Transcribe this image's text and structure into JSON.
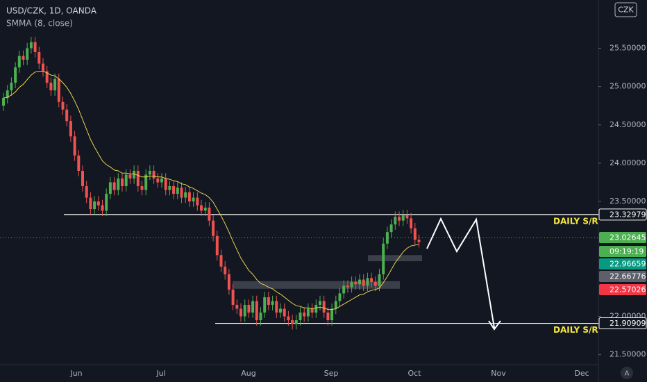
{
  "chart_data": {
    "type": "candlestick",
    "title": "USD/CZK, 1D, OANDA",
    "currency": "CZK",
    "scale_button": "A",
    "up_color": "#4caf50",
    "down_color": "#ef5350",
    "open": [
      24.75,
      24.85,
      24.95,
      25.05,
      25.25,
      25.4,
      25.35,
      25.5,
      25.58,
      25.45,
      25.3,
      25.2,
      25.05,
      24.95,
      25.1,
      24.8,
      24.7,
      24.55,
      24.35,
      24.1,
      23.9,
      23.7,
      23.55,
      23.4,
      23.5,
      23.45,
      23.38,
      23.6,
      23.75,
      23.65,
      23.8,
      23.7,
      23.85,
      23.8,
      23.9,
      23.7,
      23.65,
      23.85,
      23.9,
      23.8,
      23.75,
      23.8,
      23.65,
      23.7,
      23.6,
      23.68,
      23.55,
      23.62,
      23.5,
      23.55,
      23.45,
      23.38,
      23.42,
      23.25,
      23.05,
      22.8,
      22.65,
      22.55,
      22.35,
      22.15,
      22.1,
      22.0,
      22.15,
      22.05,
      22.2,
      21.95,
      22.05,
      22.25,
      22.15,
      22.2,
      22.05,
      22.1,
      22.0,
      21.95,
      21.9,
      21.95,
      22.05,
      22.0,
      22.1,
      22.05,
      22.15,
      22.2,
      22.05,
      21.95,
      22.1,
      22.2,
      22.3,
      22.4,
      22.38,
      22.45,
      22.42,
      22.48,
      22.4,
      22.5,
      22.45,
      22.4,
      22.55,
      22.95,
      23.1,
      23.2,
      23.3,
      23.25,
      23.32,
      23.28,
      23.15,
      23.0
    ],
    "high": [
      24.92,
      25.02,
      25.12,
      25.32,
      25.47,
      25.47,
      25.57,
      25.65,
      25.65,
      25.52,
      25.37,
      25.27,
      25.12,
      25.17,
      25.17,
      24.87,
      24.77,
      24.62,
      24.42,
      24.17,
      23.97,
      23.77,
      23.62,
      23.57,
      23.57,
      23.52,
      23.67,
      23.82,
      23.82,
      23.87,
      23.87,
      23.92,
      23.92,
      23.97,
      23.97,
      23.77,
      23.92,
      23.97,
      23.97,
      23.87,
      23.87,
      23.87,
      23.77,
      23.77,
      23.75,
      23.75,
      23.69,
      23.69,
      23.62,
      23.62,
      23.52,
      23.49,
      23.49,
      23.32,
      23.12,
      22.87,
      22.72,
      22.62,
      22.42,
      22.22,
      22.17,
      22.22,
      22.22,
      22.27,
      22.27,
      22.12,
      22.32,
      22.32,
      22.27,
      22.27,
      22.17,
      22.17,
      22.07,
      22.02,
      22.02,
      22.12,
      22.12,
      22.17,
      22.17,
      22.22,
      22.27,
      22.27,
      22.12,
      22.17,
      22.27,
      22.37,
      22.47,
      22.47,
      22.52,
      22.52,
      22.55,
      22.55,
      22.57,
      22.57,
      22.52,
      22.62,
      23.02,
      23.17,
      23.27,
      23.37,
      23.37,
      23.39,
      23.39,
      23.35,
      23.22,
      23.07
    ],
    "low": [
      24.68,
      24.78,
      24.88,
      24.98,
      25.18,
      25.28,
      25.28,
      25.43,
      25.38,
      25.23,
      25.13,
      24.98,
      24.88,
      24.88,
      24.73,
      24.63,
      24.48,
      24.28,
      24.03,
      23.83,
      23.63,
      23.48,
      23.33,
      23.33,
      23.38,
      23.31,
      23.31,
      23.53,
      23.58,
      23.58,
      23.63,
      23.63,
      23.73,
      23.73,
      23.63,
      23.58,
      23.58,
      23.78,
      23.73,
      23.68,
      23.68,
      23.58,
      23.58,
      23.53,
      23.53,
      23.48,
      23.48,
      23.43,
      23.43,
      23.38,
      23.31,
      23.31,
      23.18,
      22.98,
      22.73,
      22.58,
      22.48,
      22.28,
      22.08,
      22.03,
      21.93,
      21.93,
      21.98,
      21.98,
      21.88,
      21.88,
      21.98,
      22.08,
      22.08,
      21.98,
      21.98,
      21.93,
      21.88,
      21.83,
      21.83,
      21.88,
      21.93,
      21.93,
      21.98,
      21.98,
      22.08,
      21.98,
      21.88,
      21.88,
      22.03,
      22.13,
      22.23,
      22.31,
      22.31,
      22.35,
      22.35,
      22.33,
      22.33,
      22.38,
      22.33,
      22.33,
      22.48,
      22.88,
      23.03,
      23.13,
      23.18,
      23.18,
      23.21,
      23.08,
      22.93,
      22.9
    ],
    "close": [
      24.85,
      24.95,
      25.05,
      25.25,
      25.4,
      25.35,
      25.5,
      25.58,
      25.45,
      25.3,
      25.2,
      25.05,
      24.95,
      25.1,
      24.8,
      24.7,
      24.55,
      24.35,
      24.1,
      23.9,
      23.7,
      23.55,
      23.4,
      23.5,
      23.45,
      23.38,
      23.6,
      23.75,
      23.65,
      23.8,
      23.7,
      23.85,
      23.8,
      23.9,
      23.7,
      23.65,
      23.85,
      23.9,
      23.8,
      23.75,
      23.8,
      23.65,
      23.7,
      23.6,
      23.68,
      23.55,
      23.62,
      23.5,
      23.55,
      23.45,
      23.38,
      23.42,
      23.25,
      23.05,
      22.8,
      22.65,
      22.55,
      22.35,
      22.15,
      22.1,
      22.0,
      22.15,
      22.05,
      22.2,
      21.95,
      22.05,
      22.25,
      22.15,
      22.2,
      22.05,
      22.1,
      22.0,
      21.95,
      21.9,
      21.95,
      22.05,
      22.0,
      22.1,
      22.05,
      22.15,
      22.2,
      22.05,
      21.95,
      22.1,
      22.2,
      22.3,
      22.4,
      22.38,
      22.45,
      22.42,
      22.48,
      22.4,
      22.5,
      22.45,
      22.4,
      22.55,
      22.95,
      23.1,
      23.2,
      23.3,
      23.25,
      23.32,
      23.28,
      23.15,
      23.0,
      22.97
    ],
    "series": [
      {
        "name": "SMMA (8, close)",
        "color": "#e8d44d",
        "values": [
          24.85,
          24.86,
          24.89,
          24.93,
          24.99,
          25.03,
          25.09,
          25.15,
          25.19,
          25.2,
          25.2,
          25.18,
          25.15,
          25.14,
          25.1,
          25.05,
          24.99,
          24.91,
          24.81,
          24.7,
          24.57,
          24.44,
          24.31,
          24.21,
          24.12,
          24.03,
          23.98,
          23.95,
          23.91,
          23.9,
          23.87,
          23.87,
          23.86,
          23.86,
          23.84,
          23.82,
          23.82,
          23.83,
          23.83,
          23.82,
          23.82,
          23.8,
          23.79,
          23.77,
          23.76,
          23.73,
          23.72,
          23.69,
          23.67,
          23.64,
          23.61,
          23.59,
          23.55,
          23.49,
          23.4,
          23.31,
          23.21,
          23.1,
          22.98,
          22.87,
          22.76,
          22.68,
          22.6,
          22.55,
          22.48,
          22.43,
          22.41,
          22.38,
          22.36,
          22.32,
          22.29,
          22.25,
          22.21,
          22.17,
          22.14,
          22.13,
          22.11,
          22.11,
          22.1,
          22.11,
          22.12,
          22.11,
          22.09,
          22.09,
          22.1,
          22.13,
          22.16,
          22.19,
          22.22,
          22.25,
          22.28,
          22.29,
          22.32,
          22.34,
          22.35,
          22.37,
          22.44,
          22.52,
          22.61,
          22.7,
          22.77,
          22.84,
          22.89,
          22.92,
          22.93,
          22.94
        ]
      }
    ],
    "ylim": [
      21.37,
      26.13
    ],
    "yticks": [
      {
        "value": 21.5,
        "label": "21.50000"
      },
      {
        "value": 22,
        "label": "22.00000"
      },
      {
        "value": 23.5,
        "label": "23.50000"
      },
      {
        "value": 24,
        "label": "24.00000"
      },
      {
        "value": 24.5,
        "label": "24.50000"
      },
      {
        "value": 25,
        "label": "25.00000"
      },
      {
        "value": 25.5,
        "label": "25.50000"
      }
    ],
    "months": [
      "Jun",
      "Jul",
      "Aug",
      "Sep",
      "Oct",
      "Nov",
      "Dec"
    ],
    "levels": [
      {
        "value": 23.32979,
        "label": "DAILY S/R"
      },
      {
        "value": 21.90909,
        "label": "DAILY S/R"
      }
    ],
    "current_price": 23.02645,
    "countdown": "09:19:19",
    "price_labels": [
      {
        "value": 22.96659,
        "color": "#089981"
      },
      {
        "value": 22.66776,
        "color": "#5d606b"
      },
      {
        "value": 22.57026,
        "color": "#f23645"
      }
    ],
    "zones": [
      {
        "top": 22.8,
        "bottom": 22.72
      },
      {
        "top": 22.46,
        "bottom": 22.36
      }
    ]
  }
}
